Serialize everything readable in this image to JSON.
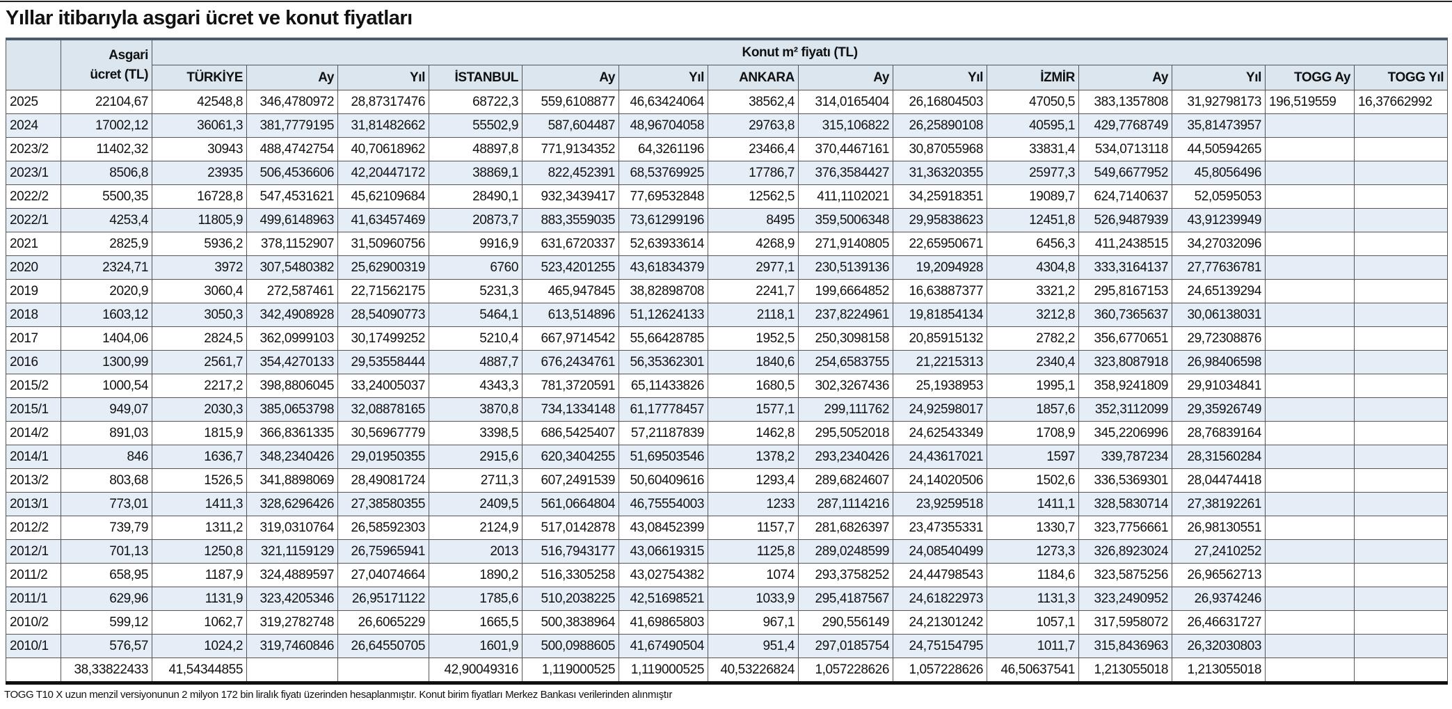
{
  "header": {
    "title": "Yıllar itibarıyla asgari ücret ve konut fiyatları"
  },
  "table": {
    "asgari_header": [
      "Asgari",
      "ücret (TL)"
    ],
    "group_header": "Konut m² fiyatı (TL)",
    "columns": [
      "TÜRKİYE",
      "Ay",
      "Yıl",
      "İSTANBUL",
      "Ay",
      "Yıl",
      "ANKARA",
      "Ay",
      "Yıl",
      "İZMİR",
      "Ay",
      "Yıl",
      "TOGG Ay",
      "TOGG Yıl"
    ],
    "rows": [
      [
        "2025",
        "22104,67",
        "42548,8",
        "346,4780972",
        "28,87317476",
        "68722,3",
        "559,6108877",
        "46,63424064",
        "38562,4",
        "314,0165404",
        "26,16804503",
        "47050,5",
        "383,1357808",
        "31,92798173",
        "196,519559",
        "16,37662992"
      ],
      [
        "2024",
        "17002,12",
        "36061,3",
        "381,7779195",
        "31,81482662",
        "55502,9",
        "587,604487",
        "48,96704058",
        "29763,8",
        "315,106822",
        "26,25890108",
        "40595,1",
        "429,7768749",
        "35,81473957"
      ],
      [
        "2023/2",
        "11402,32",
        "30943",
        "488,4742754",
        "40,70618962",
        "48897,8",
        "771,9134352",
        "64,3261196",
        "23466,4",
        "370,4467161",
        "30,87055968",
        "33831,4",
        "534,0713118",
        "44,50594265"
      ],
      [
        "2023/1",
        "8506,8",
        "23935",
        "506,4536606",
        "42,20447172",
        "38869,1",
        "822,452391",
        "68,53769925",
        "17786,7",
        "376,3584427",
        "31,36320355",
        "25977,3",
        "549,6677952",
        "45,8056496"
      ],
      [
        "2022/2",
        "5500,35",
        "16728,8",
        "547,4531621",
        "45,62109684",
        "28490,1",
        "932,3439417",
        "77,69532848",
        "12562,5",
        "411,1102021",
        "34,25918351",
        "19089,7",
        "624,7140637",
        "52,0595053"
      ],
      [
        "2022/1",
        "4253,4",
        "11805,9",
        "499,6148963",
        "41,63457469",
        "20873,7",
        "883,3559035",
        "73,61299196",
        "8495",
        "359,5006348",
        "29,95838623",
        "12451,8",
        "526,9487939",
        "43,91239949"
      ],
      [
        "2021",
        "2825,9",
        "5936,2",
        "378,1152907",
        "31,50960756",
        "9916,9",
        "631,6720337",
        "52,63933614",
        "4268,9",
        "271,9140805",
        "22,65950671",
        "6456,3",
        "411,2438515",
        "34,27032096"
      ],
      [
        "2020",
        "2324,71",
        "3972",
        "307,5480382",
        "25,62900319",
        "6760",
        "523,4201255",
        "43,61834379",
        "2977,1",
        "230,5139136",
        "19,2094928",
        "4304,8",
        "333,3164137",
        "27,77636781"
      ],
      [
        "2019",
        "2020,9",
        "3060,4",
        "272,587461",
        "22,71562175",
        "5231,3",
        "465,947845",
        "38,82898708",
        "2241,7",
        "199,6664852",
        "16,63887377",
        "3321,2",
        "295,8167153",
        "24,65139294"
      ],
      [
        "2018",
        "1603,12",
        "3050,3",
        "342,4908928",
        "28,54090773",
        "5464,1",
        "613,514896",
        "51,12624133",
        "2118,1",
        "237,8224961",
        "19,81854134",
        "3212,8",
        "360,7365637",
        "30,06138031"
      ],
      [
        "2017",
        "1404,06",
        "2824,5",
        "362,0999103",
        "30,17499252",
        "5210,4",
        "667,9714542",
        "55,66428785",
        "1952,5",
        "250,3098158",
        "20,85915132",
        "2782,2",
        "356,6770651",
        "29,72308876"
      ],
      [
        "2016",
        "1300,99",
        "2561,7",
        "354,4270133",
        "29,53558444",
        "4887,7",
        "676,2434761",
        "56,35362301",
        "1840,6",
        "254,6583755",
        "21,2215313",
        "2340,4",
        "323,8087918",
        "26,98406598"
      ],
      [
        "2015/2",
        "1000,54",
        "2217,2",
        "398,8806045",
        "33,24005037",
        "4343,3",
        "781,3720591",
        "65,11433826",
        "1680,5",
        "302,3267436",
        "25,1938953",
        "1995,1",
        "358,9241809",
        "29,91034841"
      ],
      [
        "2015/1",
        "949,07",
        "2030,3",
        "385,0653798",
        "32,08878165",
        "3870,8",
        "734,1334148",
        "61,17778457",
        "1577,1",
        "299,111762",
        "24,92598017",
        "1857,6",
        "352,3112099",
        "29,35926749"
      ],
      [
        "2014/2",
        "891,03",
        "1815,9",
        "366,8361335",
        "30,56967779",
        "3398,5",
        "686,5425407",
        "57,21187839",
        "1462,8",
        "295,5052018",
        "24,62543349",
        "1708,9",
        "345,2206996",
        "28,76839164"
      ],
      [
        "2014/1",
        "846",
        "1636,7",
        "348,2340426",
        "29,01950355",
        "2915,6",
        "620,3404255",
        "51,69503546",
        "1378,2",
        "293,2340426",
        "24,43617021",
        "1597",
        "339,787234",
        "28,31560284"
      ],
      [
        "2013/2",
        "803,68",
        "1526,5",
        "341,8898069",
        "28,49081724",
        "2711,3",
        "607,2491539",
        "50,60409616",
        "1293,4",
        "289,6824607",
        "24,14020506",
        "1502,6",
        "336,5369301",
        "28,04474418"
      ],
      [
        "2013/1",
        "773,01",
        "1411,3",
        "328,6296426",
        "27,38580355",
        "2409,5",
        "561,0664804",
        "46,75554003",
        "1233",
        "287,1114216",
        "23,9259518",
        "1411,1",
        "328,5830714",
        "27,38192261"
      ],
      [
        "2012/2",
        "739,79",
        "1311,2",
        "319,0310764",
        "26,58592303",
        "2124,9",
        "517,0142878",
        "43,08452399",
        "1157,7",
        "281,6826397",
        "23,47355331",
        "1330,7",
        "323,7756661",
        "26,98130551"
      ],
      [
        "2012/1",
        "701,13",
        "1250,8",
        "321,1159129",
        "26,75965941",
        "2013",
        "516,7943177",
        "43,06619315",
        "1125,8",
        "289,0248599",
        "24,08540499",
        "1273,3",
        "326,8923024",
        "27,2410252"
      ],
      [
        "2011/2",
        "658,95",
        "1187,9",
        "324,4889597",
        "27,04074664",
        "1890,2",
        "516,3305258",
        "43,02754382",
        "1074",
        "293,3758252",
        "24,44798543",
        "1184,6",
        "323,5875256",
        "26,96562713"
      ],
      [
        "2011/1",
        "629,96",
        "1131,9",
        "323,4205346",
        "26,95171122",
        "1785,6",
        "510,2038225",
        "42,51698521",
        "1033,9",
        "295,4187567",
        "24,61822973",
        "1131,3",
        "323,2490952",
        "26,9374246"
      ],
      [
        "2010/2",
        "599,12",
        "1062,7",
        "319,2782748",
        "26,6065229",
        "1665,5",
        "500,3838964",
        "41,69865803",
        "967,1",
        "290,556149",
        "24,21301242",
        "1057,1",
        "317,5958072",
        "26,46631727"
      ],
      [
        "2010/1",
        "576,57",
        "1024,2",
        "319,7460846",
        "26,64550705",
        "1601,9",
        "500,0988605",
        "41,67490504",
        "951,4",
        "297,0185754",
        "24,75154795",
        "1011,7",
        "315,8436963",
        "26,32030803"
      ],
      [
        null,
        "38,33822433",
        "41,54344855",
        null,
        null,
        "42,90049316",
        "1,119000525",
        "1,119000525",
        "40,53226824",
        "1,057228626",
        "1,057228626",
        "46,50637541",
        "1,213055018",
        "1,213055018"
      ]
    ]
  },
  "footer": "TOGG T10 X uzun menzil versiyonunun 2 milyon 172 bin liralık fiyatı üzerinden hesaplanmıştır. Konut birim fiyatları Merkez Bankası verilerinden alınmıştır"
}
